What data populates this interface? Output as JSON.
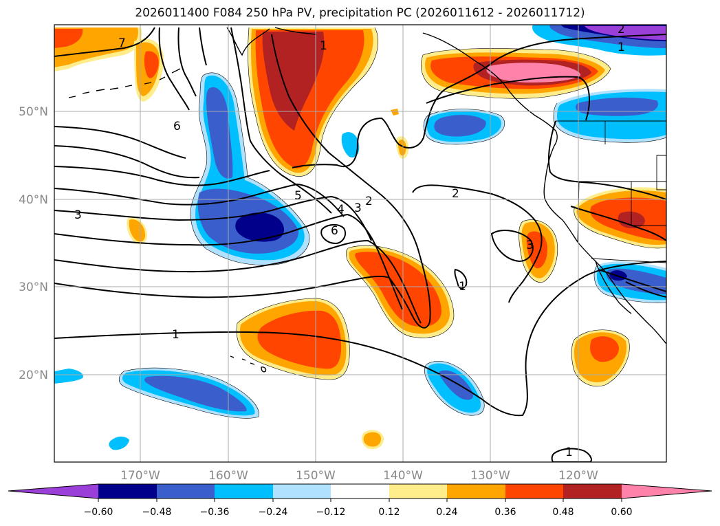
{
  "title": "2026011400 F084 250 hPa PV, precipitation PC (2026011612 - 2026011712)",
  "axes": {
    "lat_labels": [
      "50°N",
      "40°N",
      "30°N",
      "20°N"
    ],
    "lon_labels": [
      "170°W",
      "160°W",
      "150°W",
      "140°W",
      "130°W",
      "120°W"
    ]
  },
  "colorbar": {
    "ticks": [
      "−0.60",
      "−0.48",
      "−0.36",
      "−0.24",
      "−0.12",
      "0.12",
      "0.24",
      "0.36",
      "0.48",
      "0.60"
    ],
    "colors": [
      "#9b3fd9",
      "#00008b",
      "#3a5fcd",
      "#00bfff",
      "#b0e2ff",
      "#ffffff",
      "#ffec8b",
      "#ffa500",
      "#ff4500",
      "#b22222",
      "#ff82ab"
    ]
  },
  "pv_contour_labels": [
    "7",
    "6",
    "5",
    "4",
    "3",
    "2",
    "1",
    "3",
    "6",
    "2",
    "3",
    "1",
    "1",
    "1",
    "2",
    "1"
  ]
}
